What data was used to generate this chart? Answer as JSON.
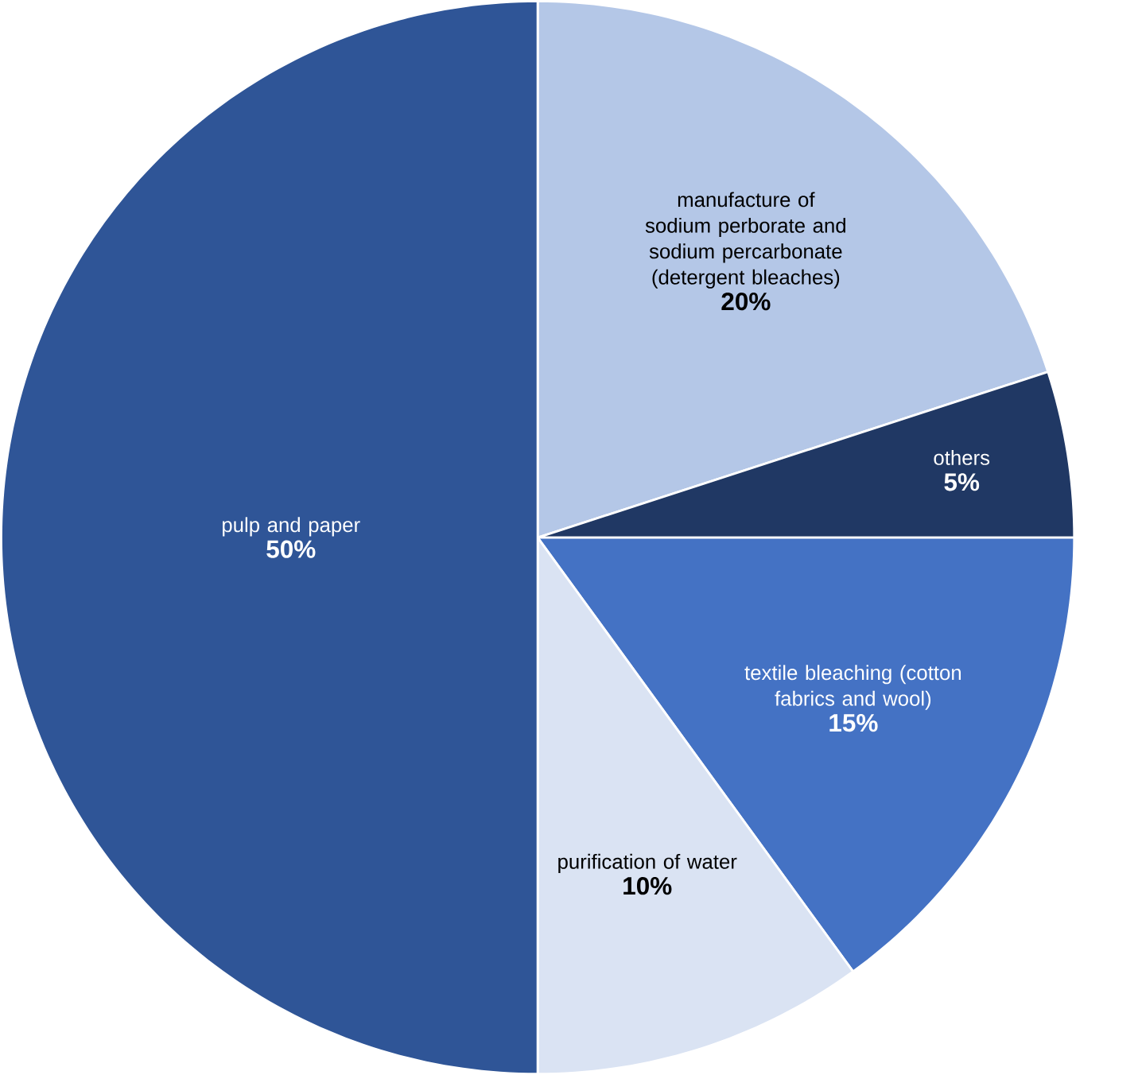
{
  "chart_data": {
    "type": "pie",
    "categories": [
      "manufacture of sodium perborate and sodium percarbonate (detergent bleaches)",
      "others",
      "textile bleaching (cotton fabrics and wool)",
      "purification of water",
      "pulp and paper"
    ],
    "values": [
      20,
      5,
      15,
      10,
      50
    ],
    "value_labels": [
      "20%",
      "5%",
      "15%",
      "10%",
      "50%"
    ],
    "colors": [
      "#b4c7e7",
      "#203864",
      "#4472c4",
      "#dae3f3",
      "#2f5597"
    ]
  }
}
